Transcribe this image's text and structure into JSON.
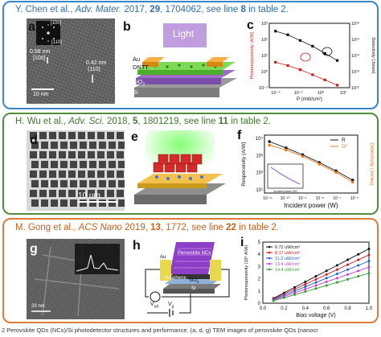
{
  "panel1": {
    "header": {
      "authors": "Y. Chen et al., ",
      "journal": "Adv. Mater.",
      "year": " 2017, ",
      "volume": "29",
      "pages": ", 1704062, see line ",
      "line": "8",
      "suffix": " in table 2."
    },
    "a": {
      "letter": "a",
      "inset_top": "[100]",
      "inset_bottom": "[110]",
      "d1": "0.58 nm",
      "d1_plane": "[100]",
      "d2": "0.42 nm",
      "d2_plane": "(110)",
      "scale": "10 nm"
    },
    "b": {
      "letter": "b",
      "light": "Light",
      "au": "Au",
      "dntt": "DNTT",
      "sio2": "SiO",
      "sio2_sub": "2",
      "si": "Si"
    },
    "c": {
      "letter": "c",
      "ylabel_left": "Photoresponsivity (A/W)",
      "ylabel_right": "Detectivity (Jones)",
      "xlabel": "P (mW/cm²)",
      "left_ticks": [
        "10³",
        "10²",
        "10¹",
        "10⁰",
        "10⁻¹"
      ],
      "right_ticks": [
        "10¹⁶",
        "10¹⁵",
        "10¹⁴",
        "10¹³",
        "10¹²"
      ],
      "x_ticks": [
        "10⁻⁴",
        "10⁻²",
        "10⁰",
        "10²"
      ]
    }
  },
  "panel2": {
    "header": {
      "authors": "H. Wu et al., ",
      "journal": "Adv. Sci.",
      "year": " 2018, ",
      "volume": "5",
      "pages": ", 1801219, see line ",
      "line": "11",
      "suffix": " in table 2."
    },
    "d": {
      "letter": "d",
      "scale": "10 um"
    },
    "e": {
      "letter": "e"
    },
    "f": {
      "letter": "f",
      "ylabel_left": "Responsivity (A/W)",
      "ylabel_right": "Detectivity (Jones)",
      "xlabel": "Incident power (W)",
      "legend_r": "R",
      "legend_d": "D*",
      "inset_xlabel": "Incident power (W)",
      "left_ticks": [
        "10⁴",
        "10³",
        "10²",
        "10¹"
      ],
      "x_ticks": [
        "10⁻¹¹",
        "10⁻¹⁰",
        "10⁻⁹",
        "10⁻⁸",
        "10⁻⁷",
        "10⁻⁶"
      ]
    }
  },
  "panel3": {
    "header": {
      "authors": "M. Gong et al., ",
      "journal": "ACS Nano",
      "year": " 2019, ",
      "volume": "13",
      "pages": ", 1772, see line ",
      "line": "22",
      "suffix": " in table 2."
    },
    "g": {
      "letter": "g",
      "scale": "20 nm"
    },
    "h": {
      "letter": "h",
      "top_label": "Light",
      "perovskite": "Perovskite NCs film",
      "au": "Au",
      "graphene": "Graphene",
      "sio2": "SiO",
      "sio2_sub": "2",
      "si": "Si",
      "vsd": "V",
      "vsd_sub": "sd",
      "vg": "V",
      "vg_sub": "g"
    },
    "i": {
      "letter": "i",
      "ylabel": "Photoresponsivity (10⁸ A/W)",
      "xlabel": "Bias voltage (V)",
      "x_ticks": [
        "0.0",
        "0.2",
        "0.4",
        "0.6",
        "0.8",
        "1.0"
      ],
      "y_ticks": [
        "0",
        "1",
        "2",
        "3",
        "4",
        "5"
      ],
      "legend": [
        "6.72 uW/cm²",
        "8.17 uW/cm²",
        "11.2 uW/cm²",
        "13.4 uW/cm²",
        "14.4 uW/cm²"
      ]
    }
  },
  "caption": "2   Perovskite QDs (NCs)/Si photodetector structures and performance. (a, d, g) TEM images of perovskite QDs (nanocr",
  "colors": {
    "blue": "#3b86c9",
    "green": "#4f8f3a",
    "orange": "#e07b39"
  },
  "chart_data": [
    {
      "type": "scatter",
      "title": "",
      "xlabel": "P (mW/cm²)",
      "ylabel": "Photoresponsivity (A/W)",
      "x_scale": "log",
      "y_scale": "log",
      "series": [
        {
          "name": "",
          "x": [
            0.0001,
            0.001,
            0.01,
            0.1,
            1,
            10
          ],
          "y": [
            900,
            500,
            200,
            80,
            25,
            8
          ]
        },
        {
          "name": "",
          "x": [
            0.0001,
            0.001,
            0.01,
            0.1,
            1,
            10
          ],
          "y": [
            6,
            3.5,
            1.8,
            0.8,
            0.35,
            0.15
          ]
        }
      ]
    },
    {
      "type": "line",
      "title": "",
      "xlabel": "Incident power (W)",
      "ylabel": "Responsivity (A/W)",
      "x_scale": "log",
      "y_scale": "log",
      "series": [
        {
          "name": "R",
          "x": [
            1e-11,
            1e-10,
            1e-09,
            1e-08,
            1e-07,
            1e-06
          ],
          "y": [
            10000,
            4000,
            1500,
            500,
            150,
            40
          ]
        },
        {
          "name": "D*",
          "x": [
            1e-11,
            1e-10,
            1e-09,
            1e-08,
            1e-07,
            1e-06
          ],
          "y": [
            6000,
            3000,
            1200,
            400,
            120,
            30
          ]
        }
      ]
    },
    {
      "type": "line",
      "title": "",
      "xlabel": "Bias voltage (V)",
      "ylabel": "Photoresponsivity (10⁸ A/W)",
      "xlim": [
        0,
        1.0
      ],
      "ylim": [
        0,
        5
      ],
      "series": [
        {
          "name": "6.72 uW/cm²",
          "x": [
            0.1,
            0.2,
            0.3,
            0.4,
            0.5,
            0.6,
            0.7,
            0.8,
            0.9,
            1.0
          ],
          "y": [
            0.4,
            0.85,
            1.3,
            1.75,
            2.2,
            2.65,
            3.1,
            3.55,
            4.0,
            4.45
          ]
        },
        {
          "name": "8.17 uW/cm²",
          "x": [
            0.1,
            0.2,
            0.3,
            0.4,
            0.5,
            0.6,
            0.7,
            0.8,
            0.9,
            1.0
          ],
          "y": [
            0.35,
            0.75,
            1.15,
            1.55,
            1.95,
            2.35,
            2.75,
            3.15,
            3.55,
            3.95
          ]
        },
        {
          "name": "11.2 uW/cm²",
          "x": [
            0.1,
            0.2,
            0.3,
            0.4,
            0.5,
            0.6,
            0.7,
            0.8,
            0.9,
            1.0
          ],
          "y": [
            0.3,
            0.65,
            1.0,
            1.35,
            1.7,
            2.05,
            2.4,
            2.75,
            3.1,
            3.45
          ]
        },
        {
          "name": "13.4 uW/cm²",
          "x": [
            0.1,
            0.2,
            0.3,
            0.4,
            0.5,
            0.6,
            0.7,
            0.8,
            0.9,
            1.0
          ],
          "y": [
            0.25,
            0.55,
            0.85,
            1.15,
            1.45,
            1.75,
            2.05,
            2.35,
            2.65,
            2.95
          ]
        },
        {
          "name": "14.4 uW/cm²",
          "x": [
            0.1,
            0.2,
            0.3,
            0.4,
            0.5,
            0.6,
            0.7,
            0.8,
            0.9,
            1.0
          ],
          "y": [
            0.2,
            0.45,
            0.7,
            0.95,
            1.2,
            1.45,
            1.7,
            1.95,
            2.2,
            2.45
          ]
        }
      ]
    }
  ]
}
